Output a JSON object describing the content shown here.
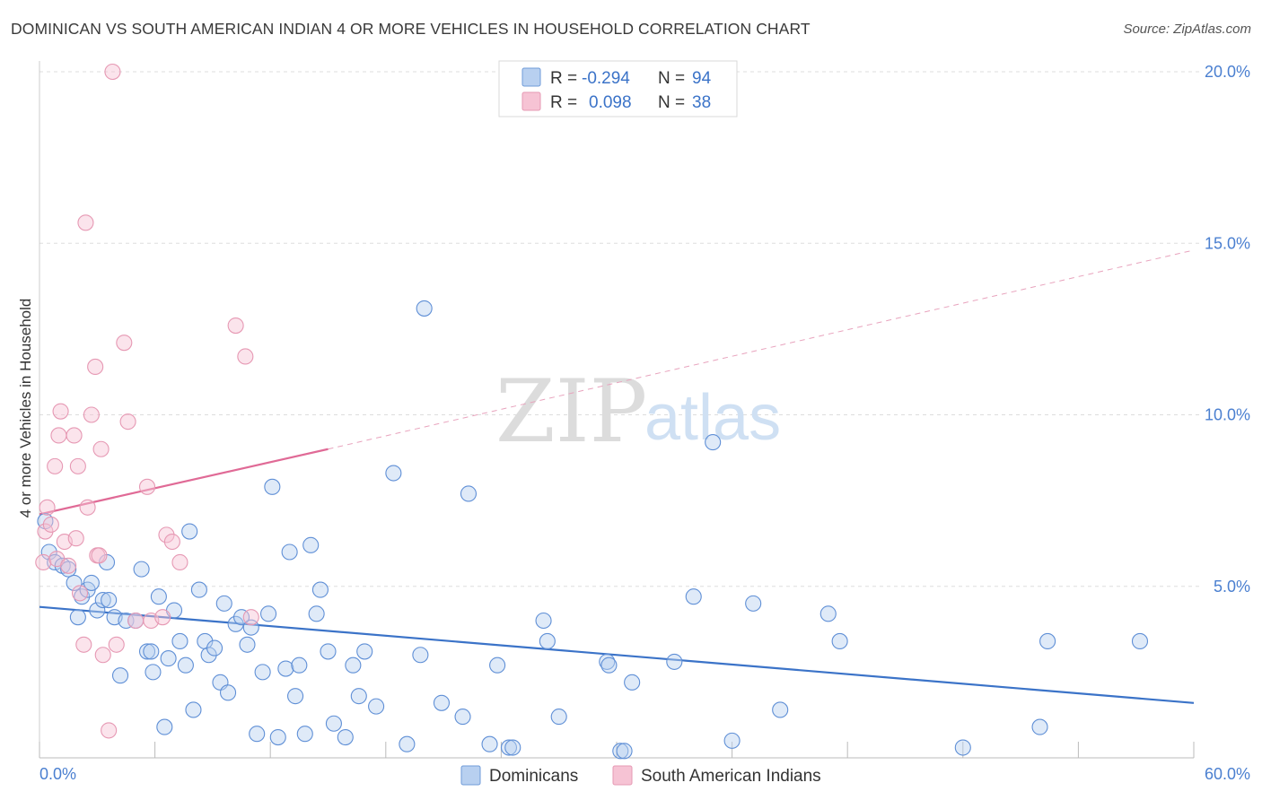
{
  "header": {
    "title": "DOMINICAN VS SOUTH AMERICAN INDIAN 4 OR MORE VEHICLES IN HOUSEHOLD CORRELATION CHART",
    "source": "Source: ZipAtlas.com"
  },
  "watermark": {
    "zip": "ZIP",
    "atlas": "atlas"
  },
  "legend": {
    "rows": [
      {
        "r_label": "R =",
        "r_value": "-0.294",
        "n_label": "N =",
        "n_value": "94"
      },
      {
        "r_label": "R =",
        "r_value": "0.098",
        "n_label": "N =",
        "n_value": "38"
      }
    ]
  },
  "bottom_legend": {
    "items": [
      "Dominicans",
      "South American Indians"
    ]
  },
  "colors": {
    "blue": "#3b73c8",
    "blue_fill": "#b8d0f0",
    "pink": "#e06a96",
    "pink_fill": "#f6c3d4",
    "grid": "#dddddd"
  },
  "chart_data": {
    "type": "scatter",
    "title": "DOMINICAN VS SOUTH AMERICAN INDIAN 4 OR MORE VEHICLES IN HOUSEHOLD CORRELATION CHART",
    "xlabel": "",
    "ylabel": "4 or more Vehicles in Household",
    "xlim": [
      0,
      60
    ],
    "ylim": [
      0,
      20
    ],
    "x_tick_labels": [
      "0.0%",
      "60.0%"
    ],
    "y_ticks": [
      5,
      10,
      15,
      20
    ],
    "y_tick_labels": [
      "5.0%",
      "10.0%",
      "15.0%",
      "20.0%"
    ],
    "grid": true,
    "legend_position": "top-center",
    "series": [
      {
        "name": "Dominicans",
        "color": "#3b73c8",
        "trend": {
          "x": [
            0,
            60
          ],
          "y": [
            4.4,
            1.6
          ],
          "dashed_from": null
        },
        "points": [
          [
            0.3,
            6.9
          ],
          [
            0.5,
            6.0
          ],
          [
            0.8,
            5.7
          ],
          [
            1.2,
            5.6
          ],
          [
            1.5,
            5.5
          ],
          [
            1.8,
            5.1
          ],
          [
            2.0,
            4.1
          ],
          [
            2.2,
            4.7
          ],
          [
            2.5,
            4.9
          ],
          [
            2.7,
            5.1
          ],
          [
            3.0,
            4.3
          ],
          [
            3.3,
            4.6
          ],
          [
            3.5,
            5.7
          ],
          [
            3.6,
            4.6
          ],
          [
            3.9,
            4.1
          ],
          [
            4.2,
            2.4
          ],
          [
            4.5,
            4.0
          ],
          [
            5.0,
            4.0
          ],
          [
            5.3,
            5.5
          ],
          [
            5.6,
            3.1
          ],
          [
            5.8,
            3.1
          ],
          [
            5.9,
            2.5
          ],
          [
            6.2,
            4.7
          ],
          [
            6.5,
            0.9
          ],
          [
            6.7,
            2.9
          ],
          [
            7.0,
            4.3
          ],
          [
            7.3,
            3.4
          ],
          [
            7.6,
            2.7
          ],
          [
            7.8,
            6.6
          ],
          [
            8.0,
            1.4
          ],
          [
            8.3,
            4.9
          ],
          [
            8.6,
            3.4
          ],
          [
            8.8,
            3.0
          ],
          [
            9.1,
            3.2
          ],
          [
            9.4,
            2.2
          ],
          [
            9.6,
            4.5
          ],
          [
            9.8,
            1.9
          ],
          [
            10.2,
            3.9
          ],
          [
            10.5,
            4.1
          ],
          [
            10.8,
            3.3
          ],
          [
            11.0,
            3.8
          ],
          [
            11.3,
            0.7
          ],
          [
            11.6,
            2.5
          ],
          [
            11.9,
            4.2
          ],
          [
            12.1,
            7.9
          ],
          [
            12.4,
            0.6
          ],
          [
            12.8,
            2.6
          ],
          [
            13.0,
            6.0
          ],
          [
            13.3,
            1.8
          ],
          [
            13.5,
            2.7
          ],
          [
            13.8,
            0.7
          ],
          [
            14.1,
            6.2
          ],
          [
            14.4,
            4.2
          ],
          [
            14.6,
            4.9
          ],
          [
            15.0,
            3.1
          ],
          [
            15.3,
            1.0
          ],
          [
            15.9,
            0.6
          ],
          [
            16.3,
            2.7
          ],
          [
            16.6,
            1.8
          ],
          [
            16.9,
            3.1
          ],
          [
            17.5,
            1.5
          ],
          [
            18.4,
            8.3
          ],
          [
            19.1,
            0.4
          ],
          [
            19.8,
            3.0
          ],
          [
            20.0,
            13.1
          ],
          [
            20.9,
            1.6
          ],
          [
            22.0,
            1.2
          ],
          [
            22.3,
            7.7
          ],
          [
            23.4,
            0.4
          ],
          [
            23.8,
            2.7
          ],
          [
            24.4,
            0.3
          ],
          [
            24.6,
            0.3
          ],
          [
            26.2,
            4.0
          ],
          [
            26.4,
            3.4
          ],
          [
            27.0,
            1.2
          ],
          [
            29.5,
            2.8
          ],
          [
            29.6,
            2.7
          ],
          [
            30.2,
            0.2
          ],
          [
            30.4,
            0.2
          ],
          [
            30.8,
            2.2
          ],
          [
            33.0,
            2.8
          ],
          [
            34.0,
            4.7
          ],
          [
            35.0,
            9.2
          ],
          [
            36.0,
            0.5
          ],
          [
            37.1,
            4.5
          ],
          [
            38.5,
            1.4
          ],
          [
            41.0,
            4.2
          ],
          [
            41.6,
            3.4
          ],
          [
            48.0,
            0.3
          ],
          [
            52.0,
            0.9
          ],
          [
            52.4,
            3.4
          ],
          [
            57.2,
            3.4
          ]
        ]
      },
      {
        "name": "South American Indians",
        "color": "#e06a96",
        "trend": {
          "x": [
            0,
            15
          ],
          "y": [
            7.1,
            9.0
          ],
          "dashed_to": [
            60,
            14.8
          ]
        },
        "points": [
          [
            0.2,
            5.7
          ],
          [
            0.3,
            6.6
          ],
          [
            0.4,
            7.3
          ],
          [
            0.6,
            6.8
          ],
          [
            0.8,
            8.5
          ],
          [
            0.9,
            5.8
          ],
          [
            1.0,
            9.4
          ],
          [
            1.1,
            10.1
          ],
          [
            1.3,
            6.3
          ],
          [
            1.5,
            5.6
          ],
          [
            1.8,
            9.4
          ],
          [
            1.9,
            6.4
          ],
          [
            2.0,
            8.5
          ],
          [
            2.1,
            4.8
          ],
          [
            2.3,
            3.3
          ],
          [
            2.4,
            15.6
          ],
          [
            2.5,
            7.3
          ],
          [
            2.7,
            10.0
          ],
          [
            2.9,
            11.4
          ],
          [
            3.0,
            5.9
          ],
          [
            3.1,
            5.9
          ],
          [
            3.2,
            9.0
          ],
          [
            3.3,
            3.0
          ],
          [
            3.6,
            0.8
          ],
          [
            3.8,
            20.0
          ],
          [
            4.0,
            3.3
          ],
          [
            4.4,
            12.1
          ],
          [
            4.6,
            9.8
          ],
          [
            5.0,
            4.0
          ],
          [
            5.6,
            7.9
          ],
          [
            5.8,
            4.0
          ],
          [
            6.4,
            4.1
          ],
          [
            6.6,
            6.5
          ],
          [
            6.9,
            6.3
          ],
          [
            7.3,
            5.7
          ],
          [
            10.2,
            12.6
          ],
          [
            10.7,
            11.7
          ],
          [
            11.0,
            4.1
          ]
        ]
      }
    ]
  }
}
